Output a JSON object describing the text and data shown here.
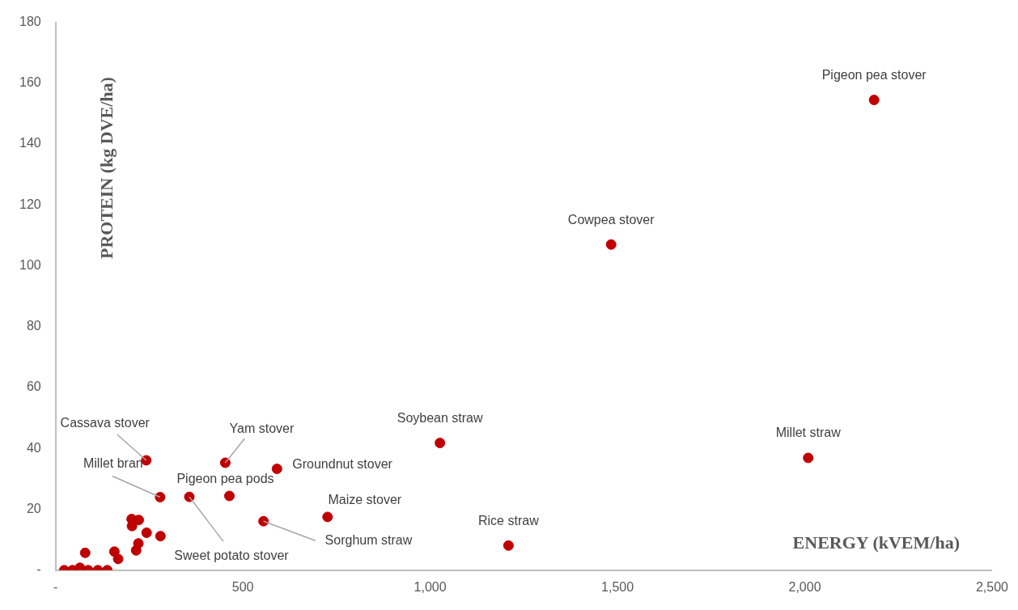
{
  "chart_data": {
    "type": "scatter",
    "xlabel": "ENERGY (kVEM/ha)",
    "ylabel": "PROTEIN (kg DVE/ha)",
    "x": [
      2185,
      1483,
      2009,
      1026,
      1209,
      726,
      555,
      591,
      453,
      242,
      279,
      464,
      357,
      203,
      222,
      204,
      243,
      280,
      221,
      215,
      79,
      157,
      167,
      23,
      45,
      65,
      87,
      113,
      138
    ],
    "series": [
      {
        "color": "#c00000",
        "values": [
          154.5,
          107,
          36.9,
          41.8,
          8.1,
          17.5,
          16.1,
          33.3,
          35.3,
          36.1,
          24.0,
          24.4,
          24.1,
          16.8,
          16.5,
          14.5,
          12.3,
          11.2,
          8.8,
          6.5,
          5.7,
          6.1,
          3.7,
          0,
          0,
          0.8,
          0,
          0,
          0
        ]
      }
    ],
    "marker": "circle",
    "grid": false,
    "legend": false,
    "xlim": [
      0,
      2500
    ],
    "xticks": [
      {
        "value": 0,
        "label": "-"
      },
      500,
      {
        "value": 1000,
        "label": "1,000"
      },
      {
        "value": 1500,
        "label": "1,500"
      },
      {
        "value": 2000,
        "label": "2,000"
      },
      {
        "value": 2500,
        "label": "2,500"
      }
    ],
    "ylim": [
      0,
      180
    ],
    "yticks": [
      {
        "value": 0,
        "label": "-"
      },
      20,
      40,
      60,
      80,
      100,
      120,
      140,
      160,
      180
    ],
    "annotations": [
      {
        "text": "Pigeon pea stover",
        "x": 2185,
        "y": 154.5
      },
      {
        "text": "Cowpea stover",
        "x": 1483,
        "y": 107
      },
      {
        "text": "Millet straw",
        "x": 2009,
        "y": 36.9
      },
      {
        "text": "Soybean straw",
        "x": 1026,
        "y": 41.8
      },
      {
        "text": "Rice straw",
        "x": 1209,
        "y": 8.1
      },
      {
        "text": "Maize stover",
        "x": 726,
        "y": 17.5
      },
      {
        "text": "Sorghum straw",
        "x": 555,
        "y": 16.1
      },
      {
        "text": "Groundnut stover",
        "x": 591,
        "y": 33.3
      },
      {
        "text": "Yam stover",
        "x": 453,
        "y": 35.3
      },
      {
        "text": "Cassava stover",
        "x": 242,
        "y": 36.1
      },
      {
        "text": "Millet bran",
        "x": 279,
        "y": 24.0
      },
      {
        "text": "Pigeon pea pods",
        "x": 464,
        "y": 24.4
      },
      {
        "text": "Sweet potato stover",
        "x": 357,
        "y": 24.1
      }
    ]
  }
}
